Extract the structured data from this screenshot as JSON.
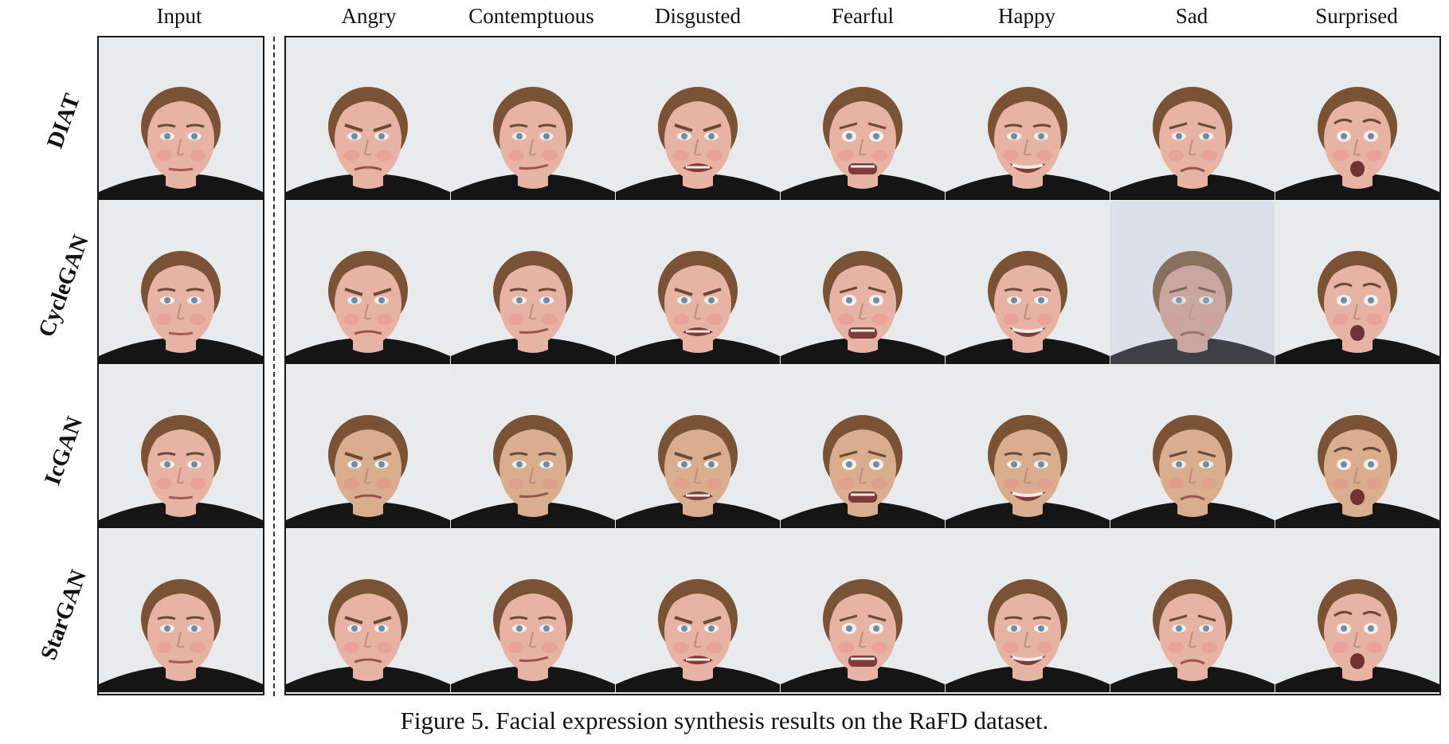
{
  "columns": [
    "Input",
    "Angry",
    "Contemptuous",
    "Disgusted",
    "Fearful",
    "Happy",
    "Sad",
    "Surprised"
  ],
  "rows": [
    "DIAT",
    "CycleGAN",
    "IcGAN",
    "StarGAN"
  ],
  "caption": "Figure 5. Facial expression synthesis results on the RaFD dataset.",
  "expressions": {
    "Input": "neutral",
    "Angry": "angry",
    "Contemptuous": "contempt",
    "Disgusted": "disgusted",
    "Fearful": "fearful",
    "Happy": "happy",
    "Sad": "sad",
    "Surprised": "surprised"
  },
  "colors": {
    "background": "#e9eaeb",
    "skin": "#e7b3a4",
    "skin_icgan": "#d9ae8e",
    "hair": "#7a5336",
    "shirt": "#151515",
    "cheek": "#e88f8a",
    "eye": "#6f8ea6"
  }
}
